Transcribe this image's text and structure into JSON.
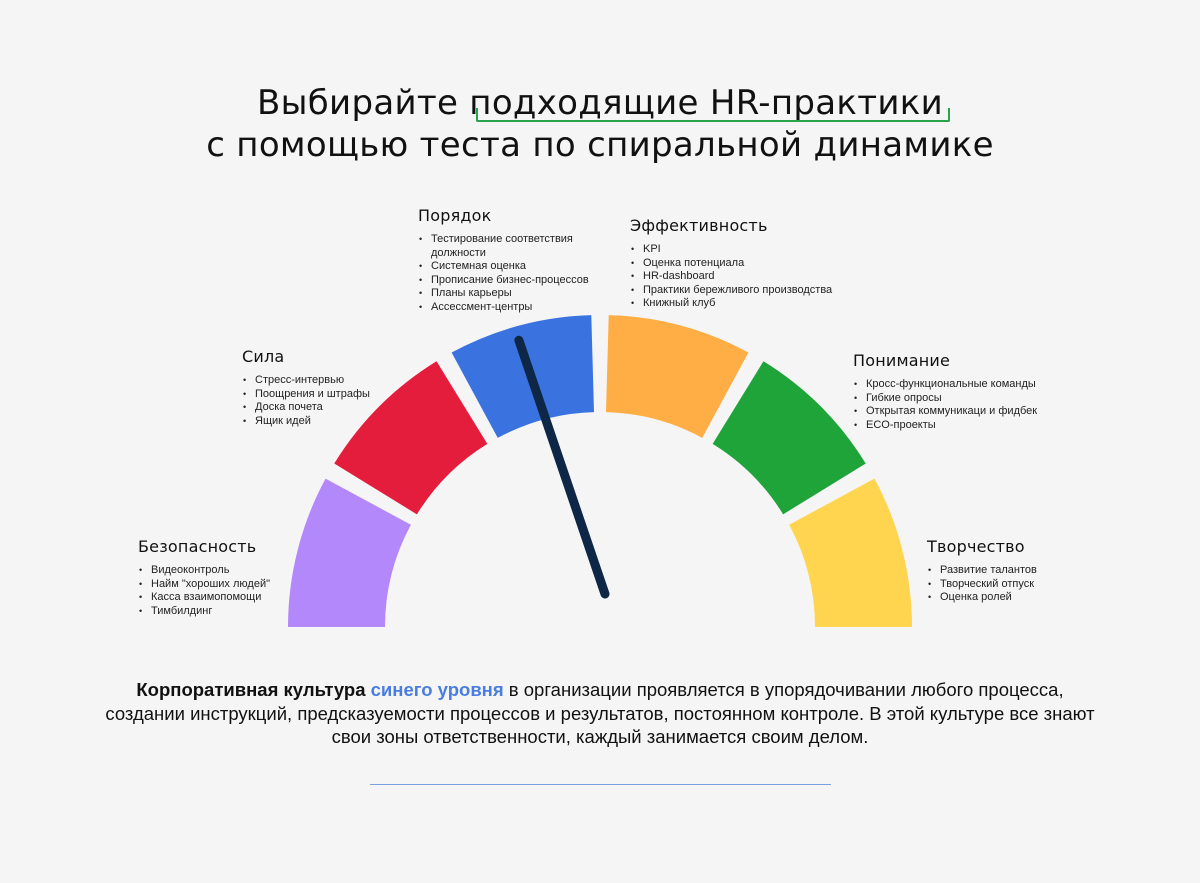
{
  "title": {
    "line1_before": "Выбирайте ",
    "line1_highlight": "подходящие HR-практики",
    "line2": "с помощью теста по спиральной динамике"
  },
  "colors": {
    "highlight_underline": "#2aa44a",
    "accent_blue_text": "#4a7de0",
    "needle": "#0e2746"
  },
  "gauge": {
    "segments": [
      {
        "name": "Безопасность",
        "color": "#b388fb"
      },
      {
        "name": "Сила",
        "color": "#e51d3c"
      },
      {
        "name": "Порядок",
        "color": "#3a72e0"
      },
      {
        "name": "Эффективность",
        "color": "#ffad45"
      },
      {
        "name": "Понимание",
        "color": "#1fa43a"
      },
      {
        "name": "Творчество",
        "color": "#ffd54f"
      }
    ],
    "needle_points_to": "Порядок"
  },
  "categories": {
    "security": {
      "title": "Безопасность",
      "items": [
        "Видеоконтроль",
        "Найм \"хороших людей\"",
        "Касса взаимопомощи",
        "Тимбилдинг"
      ]
    },
    "power": {
      "title": "Сила",
      "items": [
        "Стресс-интервью",
        "Поощрения и штрафы",
        "Доска почета",
        "Ящик идей"
      ]
    },
    "order": {
      "title": "Порядок",
      "items": [
        "Тестирование соответствия должности",
        "Системная оценка",
        "Прописание бизнес-процессов",
        "Планы карьеры",
        "Ассессмент-центры"
      ]
    },
    "efficiency": {
      "title": "Эффективность",
      "items": [
        "KPI",
        "Оценка потенциала",
        "HR-dashboard",
        "Практики бережливого производства",
        "Книжный клуб"
      ]
    },
    "understanding": {
      "title": "Понимание",
      "items": [
        "Кросс-функциональные команды",
        "Гибкие опросы",
        "Открытая коммуникаци и фидбек",
        "ECO-проекты"
      ]
    },
    "creativity": {
      "title": "Творчество",
      "items": [
        "Развитие талантов",
        "Творческий отпуск",
        "Оценка ролей"
      ]
    }
  },
  "description": {
    "bold_start": "Корпоративная культура ",
    "blue_part": "синего уровня",
    "rest": " в организации проявляется в упорядочивании любого процесса, создании инструкций, предсказуемости процессов и результатов, постоянном контроле. В этой культуре все знают свои зоны ответственности, каждый занимается своим делом."
  }
}
